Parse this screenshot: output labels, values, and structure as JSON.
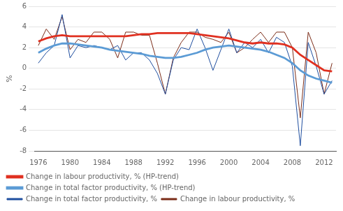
{
  "chart_data": {
    "type": "line",
    "ylabel": "%",
    "x": [
      1976,
      1977,
      1978,
      1979,
      1980,
      1981,
      1982,
      1983,
      1984,
      1985,
      1986,
      1987,
      1988,
      1989,
      1990,
      1991,
      1992,
      1993,
      1994,
      1995,
      1996,
      1997,
      1998,
      1999,
      2000,
      2001,
      2002,
      2003,
      2004,
      2005,
      2006,
      2007,
      2008,
      2009,
      2010,
      2011,
      2012,
      2013
    ],
    "series": [
      {
        "name": "Change in total factor productivity, %",
        "color": "#1f4e9f",
        "values": [
          0.5,
          1.5,
          2.2,
          5.2,
          1.0,
          2.2,
          2.0,
          2.2,
          2.0,
          1.8,
          2.2,
          0.8,
          1.5,
          1.5,
          0.8,
          -0.5,
          -2.5,
          0.8,
          2.0,
          1.8,
          3.8,
          2.0,
          -0.2,
          1.8,
          3.8,
          1.5,
          2.5,
          2.0,
          2.8,
          1.5,
          3.0,
          2.5,
          0.2,
          -7.5,
          2.5,
          0.2,
          -2.5,
          -1.2
        ]
      },
      {
        "name": "Change in total factor productivity, % (HP-trend)",
        "color": "#5b9bd5",
        "values": [
          1.5,
          1.9,
          2.2,
          2.4,
          2.4,
          2.3,
          2.2,
          2.1,
          2.0,
          1.8,
          1.7,
          1.6,
          1.5,
          1.4,
          1.2,
          1.1,
          1.0,
          1.0,
          1.1,
          1.3,
          1.5,
          1.8,
          2.0,
          2.1,
          2.2,
          2.1,
          2.0,
          1.9,
          1.8,
          1.6,
          1.3,
          1.0,
          0.5,
          -0.2,
          -0.7,
          -1.0,
          -1.2,
          -1.4
        ]
      },
      {
        "name": "Change in labour productivity, %",
        "color": "#7b2c18",
        "values": [
          2.2,
          3.8,
          2.8,
          5.0,
          1.8,
          2.8,
          2.5,
          3.5,
          3.5,
          2.8,
          1.0,
          3.5,
          3.5,
          3.2,
          3.2,
          0.5,
          -2.5,
          1.0,
          2.5,
          3.5,
          3.5,
          3.0,
          2.8,
          2.5,
          3.5,
          1.5,
          2.0,
          2.8,
          3.5,
          2.5,
          3.5,
          3.5,
          2.0,
          -4.8,
          3.5,
          1.5,
          -2.5,
          0.5
        ]
      },
      {
        "name": "Change in labour productivity, % (HP-trend)",
        "color": "#e03020",
        "values": [
          2.6,
          2.9,
          3.1,
          3.2,
          3.1,
          3.1,
          3.1,
          3.1,
          3.1,
          3.1,
          3.1,
          3.1,
          3.2,
          3.3,
          3.3,
          3.4,
          3.4,
          3.4,
          3.4,
          3.4,
          3.3,
          3.2,
          3.1,
          3.0,
          2.9,
          2.7,
          2.5,
          2.4,
          2.5,
          2.4,
          2.4,
          2.3,
          2.0,
          1.3,
          0.8,
          0.3,
          -0.2,
          -0.3
        ]
      }
    ],
    "xlim": [
      1975.5,
      2013.5
    ],
    "xticks": [
      1976,
      1980,
      1984,
      1988,
      1992,
      1996,
      2000,
      2004,
      2008,
      2012
    ],
    "ylim": [
      -8,
      6
    ],
    "yticks": [
      -8,
      -6,
      -4,
      -2,
      0,
      2,
      4,
      6
    ],
    "grid": true,
    "legend": "bottom"
  }
}
